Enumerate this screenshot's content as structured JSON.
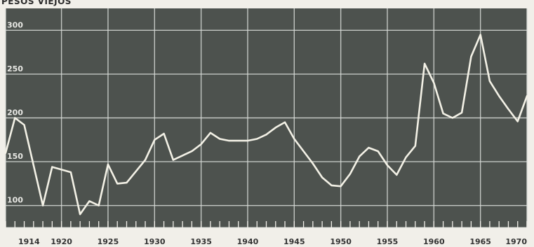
{
  "chart_data": {
    "type": "line",
    "title": "PESOS VIEJOS",
    "xlabel": "",
    "ylabel": "",
    "xlim": [
      1914,
      1970
    ],
    "ylim": [
      75,
      325
    ],
    "x_ticks": [
      1914,
      1920,
      1925,
      1930,
      1935,
      1940,
      1945,
      1950,
      1955,
      1960,
      1965,
      1970
    ],
    "y_ticks": [
      100,
      150,
      200,
      250,
      300
    ],
    "grid": true,
    "colors": {
      "plot_background": "#4d524e",
      "grid": "#d8dcd8",
      "line": "#f3f1e6",
      "page": "#f1efe9",
      "text": "#333333"
    },
    "series": [
      {
        "x": [
          1914,
          1915,
          1916,
          1918,
          1919,
          1921,
          1922,
          1923,
          1924,
          1925,
          1926,
          1927,
          1929,
          1930,
          1931,
          1932,
          1933,
          1934,
          1935,
          1936,
          1937,
          1938,
          1939,
          1940,
          1941,
          1942,
          1943,
          1944,
          1945,
          1946,
          1947,
          1948,
          1949,
          1950,
          1951,
          1952,
          1953,
          1954,
          1955,
          1956,
          1957,
          1958,
          1959,
          1960,
          1961,
          1962,
          1963,
          1964,
          1965,
          1966,
          1967,
          1968,
          1969,
          1970
        ],
        "y": [
          160,
          200,
          192,
          100,
          144,
          138,
          90,
          105,
          100,
          147,
          125,
          126,
          152,
          175,
          182,
          152,
          157,
          162,
          170,
          183,
          176,
          174,
          174,
          174,
          176,
          181,
          189,
          195,
          176,
          162,
          148,
          132,
          123,
          122,
          136,
          156,
          166,
          162,
          146,
          135,
          155,
          168,
          262,
          240,
          205,
          200,
          206,
          270,
          295,
          242,
          225,
          210,
          196,
          225
        ]
      }
    ]
  }
}
